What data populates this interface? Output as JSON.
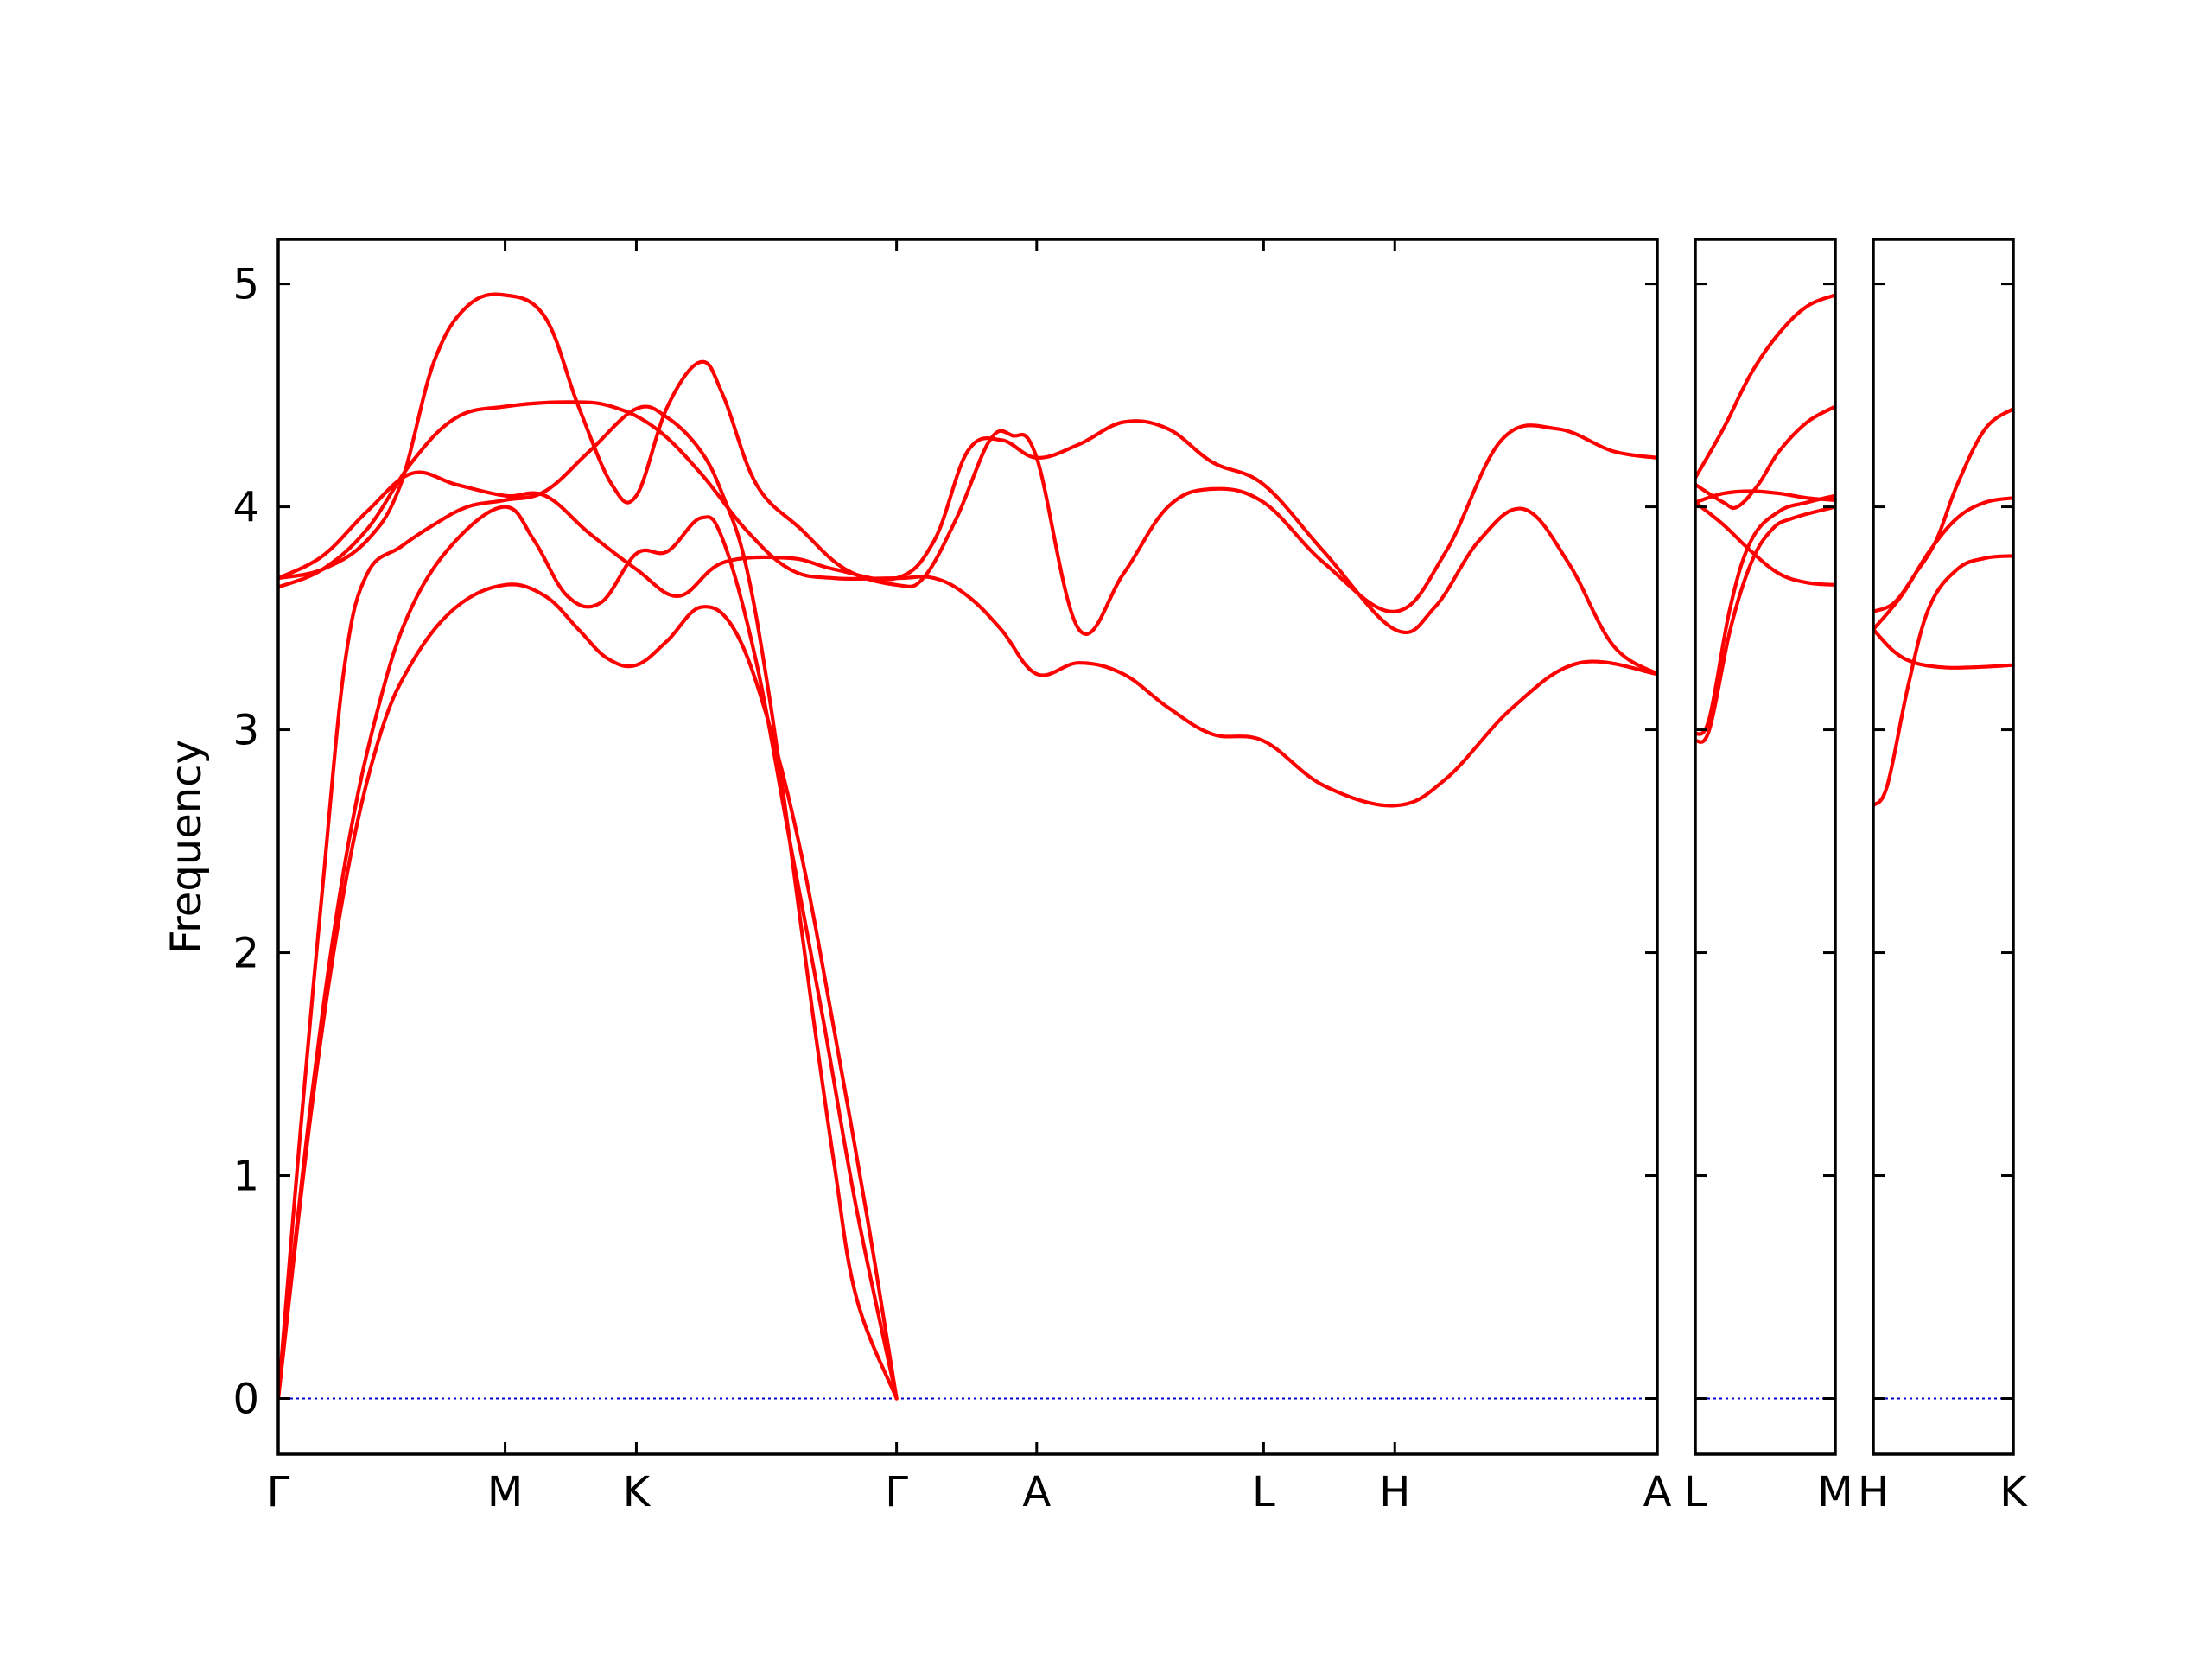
{
  "chart_data": {
    "type": "line",
    "ylabel": "Frequency",
    "ylim": [
      -0.25,
      5.2
    ],
    "yticks": [
      0,
      1,
      2,
      3,
      4,
      5
    ],
    "colors": {
      "bands": "#ff0000",
      "zero_line": "#0000cc",
      "frame": "#000000"
    },
    "grid": false,
    "panels": [
      {
        "xlim": [
          0,
          6.2
        ],
        "ticks": [
          {
            "x": 0.0,
            "label": "Γ"
          },
          {
            "x": 1.02,
            "label": "M"
          },
          {
            "x": 1.61,
            "label": "K"
          },
          {
            "x": 2.78,
            "label": "Γ"
          },
          {
            "x": 3.41,
            "label": "A"
          },
          {
            "x": 4.43,
            "label": "L"
          },
          {
            "x": 5.02,
            "label": "H"
          },
          {
            "x": 6.2,
            "label": "A"
          }
        ],
        "series": [
          {
            "values": [
              [
                0,
                0
              ],
              [
                0.15,
                1.3
              ],
              [
                0.3,
                2.3
              ],
              [
                0.45,
                2.95
              ],
              [
                0.6,
                3.3
              ],
              [
                0.8,
                3.55
              ],
              [
                1.02,
                3.65
              ],
              [
                1.2,
                3.6
              ],
              [
                1.35,
                3.45
              ],
              [
                1.48,
                3.32
              ],
              [
                1.61,
                3.29
              ],
              [
                1.75,
                3.4
              ],
              [
                1.9,
                3.55
              ],
              [
                2.05,
                3.45
              ],
              [
                2.2,
                3.05
              ],
              [
                2.35,
                2.45
              ],
              [
                2.5,
                1.65
              ],
              [
                2.65,
                0.8
              ],
              [
                2.78,
                0
              ]
            ]
          },
          {
            "values": [
              [
                0,
                0
              ],
              [
                0.15,
                1.35
              ],
              [
                0.3,
                2.4
              ],
              [
                0.45,
                3.1
              ],
              [
                0.6,
                3.55
              ],
              [
                0.8,
                3.85
              ],
              [
                1.02,
                4.0
              ],
              [
                1.15,
                3.85
              ],
              [
                1.3,
                3.6
              ],
              [
                1.45,
                3.57
              ],
              [
                1.61,
                3.79
              ],
              [
                1.75,
                3.8
              ],
              [
                1.9,
                3.95
              ],
              [
                2.0,
                3.85
              ],
              [
                2.15,
                3.3
              ],
              [
                2.3,
                2.5
              ],
              [
                2.45,
                1.7
              ],
              [
                2.6,
                0.85
              ],
              [
                2.78,
                0
              ]
            ]
          },
          {
            "values": [
              [
                0,
                0
              ],
              [
                0.1,
                1.2
              ],
              [
                0.2,
                2.3
              ],
              [
                0.3,
                3.3
              ],
              [
                0.4,
                3.7
              ],
              [
                0.55,
                3.82
              ],
              [
                0.7,
                3.92
              ],
              [
                0.85,
                4.0
              ],
              [
                1.02,
                4.03
              ],
              [
                1.2,
                4.07
              ],
              [
                1.4,
                4.25
              ],
              [
                1.61,
                4.44
              ],
              [
                1.75,
                4.4
              ],
              [
                1.9,
                4.25
              ],
              [
                2.0,
                4.05
              ],
              [
                2.1,
                3.75
              ],
              [
                2.2,
                3.2
              ],
              [
                2.3,
                2.5
              ],
              [
                2.4,
                1.75
              ],
              [
                2.5,
                1.05
              ],
              [
                2.6,
                0.45
              ],
              [
                2.78,
                0
              ]
            ]
          },
          {
            "values": [
              [
                0,
                3.64
              ],
              [
                0.2,
                3.72
              ],
              [
                0.4,
                3.9
              ],
              [
                0.6,
                4.2
              ],
              [
                0.8,
                4.4
              ],
              [
                1.02,
                4.45
              ],
              [
                1.3,
                4.47
              ],
              [
                1.5,
                4.45
              ],
              [
                1.7,
                4.35
              ],
              [
                1.9,
                4.15
              ],
              [
                2.1,
                3.9
              ],
              [
                2.3,
                3.72
              ],
              [
                2.5,
                3.68
              ],
              [
                2.78,
                3.68
              ],
              [
                2.95,
                3.68
              ],
              [
                3.1,
                3.6
              ],
              [
                3.25,
                3.45
              ],
              [
                3.41,
                3.25
              ],
              [
                3.6,
                3.3
              ],
              [
                3.8,
                3.25
              ],
              [
                4.0,
                3.1
              ],
              [
                4.2,
                2.98
              ],
              [
                4.43,
                2.95
              ],
              [
                4.7,
                2.75
              ],
              [
                5.02,
                2.66
              ],
              [
                5.25,
                2.78
              ],
              [
                5.55,
                3.1
              ],
              [
                5.85,
                3.3
              ],
              [
                6.2,
                3.25
              ]
            ]
          },
          {
            "values": [
              [
                0,
                3.68
              ],
              [
                0.2,
                3.78
              ],
              [
                0.4,
                3.98
              ],
              [
                0.6,
                4.15
              ],
              [
                0.8,
                4.1
              ],
              [
                1.02,
                4.05
              ],
              [
                1.2,
                4.05
              ],
              [
                1.4,
                3.88
              ],
              [
                1.61,
                3.72
              ],
              [
                1.8,
                3.6
              ],
              [
                2.0,
                3.75
              ],
              [
                2.3,
                3.77
              ],
              [
                2.5,
                3.72
              ],
              [
                2.78,
                3.68
              ],
              [
                2.95,
                3.85
              ],
              [
                3.1,
                4.25
              ],
              [
                3.25,
                4.3
              ],
              [
                3.41,
                4.22
              ],
              [
                3.6,
                4.28
              ],
              [
                3.8,
                4.38
              ],
              [
                4.0,
                4.35
              ],
              [
                4.2,
                4.2
              ],
              [
                4.43,
                4.1
              ],
              [
                4.7,
                3.8
              ],
              [
                5.02,
                3.45
              ],
              [
                5.2,
                3.55
              ],
              [
                5.4,
                3.85
              ],
              [
                5.6,
                3.99
              ],
              [
                5.8,
                3.75
              ],
              [
                6.0,
                3.38
              ],
              [
                6.2,
                3.25
              ]
            ]
          },
          {
            "values": [
              [
                0,
                3.68
              ],
              [
                0.2,
                3.72
              ],
              [
                0.4,
                3.85
              ],
              [
                0.55,
                4.1
              ],
              [
                0.7,
                4.65
              ],
              [
                0.85,
                4.9
              ],
              [
                1.02,
                4.95
              ],
              [
                1.2,
                4.85
              ],
              [
                1.35,
                4.45
              ],
              [
                1.5,
                4.1
              ],
              [
                1.61,
                4.05
              ],
              [
                1.75,
                4.45
              ],
              [
                1.9,
                4.65
              ],
              [
                2.0,
                4.5
              ],
              [
                2.15,
                4.1
              ],
              [
                2.35,
                3.9
              ],
              [
                2.55,
                3.72
              ],
              [
                2.78,
                3.65
              ],
              [
                2.9,
                3.68
              ],
              [
                3.05,
                3.95
              ],
              [
                3.2,
                4.3
              ],
              [
                3.3,
                4.32
              ],
              [
                3.41,
                4.22
              ],
              [
                3.6,
                3.45
              ],
              [
                3.8,
                3.7
              ],
              [
                4.0,
                4.0
              ],
              [
                4.2,
                4.08
              ],
              [
                4.43,
                4.02
              ],
              [
                4.7,
                3.75
              ],
              [
                5.02,
                3.53
              ],
              [
                5.25,
                3.8
              ],
              [
                5.5,
                4.3
              ],
              [
                5.75,
                4.35
              ],
              [
                6.0,
                4.25
              ],
              [
                6.2,
                4.22
              ]
            ]
          }
        ]
      },
      {
        "xlim": [
          0,
          1.0
        ],
        "ticks": [
          {
            "x": 0.0,
            "label": "L"
          },
          {
            "x": 1.0,
            "label": "M"
          }
        ],
        "series": [
          {
            "values": [
              [
                0,
                2.98
              ],
              [
                0.1,
                3.05
              ],
              [
                0.25,
                3.55
              ],
              [
                0.4,
                3.85
              ],
              [
                0.6,
                3.98
              ],
              [
                0.8,
                4.02
              ],
              [
                1.0,
                4.05
              ]
            ]
          },
          {
            "values": [
              [
                0,
                2.95
              ],
              [
                0.1,
                3.0
              ],
              [
                0.25,
                3.45
              ],
              [
                0.4,
                3.75
              ],
              [
                0.55,
                3.9
              ],
              [
                0.7,
                3.95
              ],
              [
                1.0,
                4.0
              ]
            ]
          },
          {
            "values": [
              [
                0,
                4.02
              ],
              [
                0.2,
                4.06
              ],
              [
                0.4,
                4.07
              ],
              [
                0.6,
                4.06
              ],
              [
                0.8,
                4.04
              ],
              [
                1.0,
                4.03
              ]
            ]
          },
          {
            "values": [
              [
                0,
                4.02
              ],
              [
                0.2,
                3.92
              ],
              [
                0.4,
                3.8
              ],
              [
                0.6,
                3.7
              ],
              [
                0.8,
                3.66
              ],
              [
                1.0,
                3.65
              ]
            ]
          },
          {
            "values": [
              [
                0,
                4.1
              ],
              [
                0.2,
                4.02
              ],
              [
                0.3,
                4.0
              ],
              [
                0.45,
                4.1
              ],
              [
                0.6,
                4.25
              ],
              [
                0.8,
                4.38
              ],
              [
                1.0,
                4.45
              ]
            ]
          },
          {
            "values": [
              [
                0,
                4.13
              ],
              [
                0.2,
                4.35
              ],
              [
                0.4,
                4.6
              ],
              [
                0.6,
                4.78
              ],
              [
                0.8,
                4.9
              ],
              [
                1.0,
                4.95
              ]
            ]
          }
        ]
      },
      {
        "xlim": [
          0,
          1.0
        ],
        "ticks": [
          {
            "x": 0.0,
            "label": "H"
          },
          {
            "x": 1.0,
            "label": "K"
          }
        ],
        "series": [
          {
            "values": [
              [
                0,
                2.66
              ],
              [
                0.1,
                2.75
              ],
              [
                0.25,
                3.2
              ],
              [
                0.4,
                3.55
              ],
              [
                0.6,
                3.72
              ],
              [
                0.8,
                3.77
              ],
              [
                1.0,
                3.78
              ]
            ]
          },
          {
            "values": [
              [
                0,
                3.45
              ],
              [
                0.15,
                3.35
              ],
              [
                0.3,
                3.3
              ],
              [
                0.5,
                3.28
              ],
              [
                0.7,
                3.28
              ],
              [
                1.0,
                3.29
              ]
            ]
          },
          {
            "values": [
              [
                0,
                3.45
              ],
              [
                0.2,
                3.6
              ],
              [
                0.4,
                3.8
              ],
              [
                0.6,
                3.95
              ],
              [
                0.8,
                4.02
              ],
              [
                1.0,
                4.04
              ]
            ]
          },
          {
            "values": [
              [
                0,
                3.53
              ],
              [
                0.15,
                3.57
              ],
              [
                0.3,
                3.7
              ],
              [
                0.45,
                3.85
              ],
              [
                0.6,
                4.1
              ],
              [
                0.8,
                4.35
              ],
              [
                1.0,
                4.44
              ]
            ]
          }
        ]
      }
    ]
  }
}
